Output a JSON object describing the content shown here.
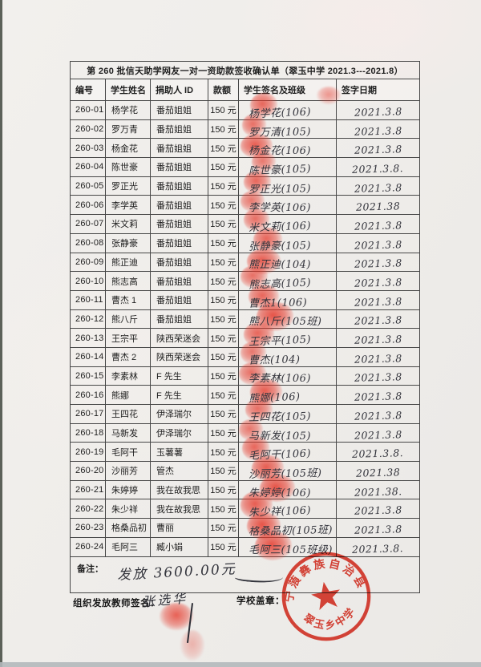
{
  "title": "第 260 批信天助学网友一对一资助款签收确认单（翠玉中学 2021.3---2021.8）",
  "columns": [
    "编号",
    "学生姓名",
    "捐助人 ID",
    "款额",
    "学生签名及班级",
    "签字日期"
  ],
  "rows": [
    {
      "id": "260-01",
      "name": "杨学花",
      "donor": "番茄姐姐",
      "amount": "150 元",
      "signature": "杨学花(106)",
      "date": "2021.3.8"
    },
    {
      "id": "260-02",
      "name": "罗万青",
      "donor": "番茄姐姐",
      "amount": "150 元",
      "signature": "罗万清(105)",
      "date": "2021.3.8"
    },
    {
      "id": "260-03",
      "name": "杨金花",
      "donor": "番茄姐姐",
      "amount": "150 元",
      "signature": "杨金花(106)",
      "date": "2021.3.8"
    },
    {
      "id": "260-04",
      "name": "陈世豪",
      "donor": "番茄姐姐",
      "amount": "150 元",
      "signature": "陈世豪(105)",
      "date": "2021.3.8."
    },
    {
      "id": "260-05",
      "name": "罗正光",
      "donor": "番茄姐姐",
      "amount": "150 元",
      "signature": "罗正光(105)",
      "date": "2021.3.8"
    },
    {
      "id": "260-06",
      "name": "李学英",
      "donor": "番茄姐姐",
      "amount": "150 元",
      "signature": "李学英(106)",
      "date": "2021.38"
    },
    {
      "id": "260-07",
      "name": "米文莉",
      "donor": "番茄姐姐",
      "amount": "150 元",
      "signature": "米文莉(106)",
      "date": "2021.3.8"
    },
    {
      "id": "260-08",
      "name": "张静豪",
      "donor": "番茄姐姐",
      "amount": "150 元",
      "signature": "张静豪(105)",
      "date": "2021.3.8"
    },
    {
      "id": "260-09",
      "name": "熊正迪",
      "donor": "番茄姐姐",
      "amount": "150 元",
      "signature": "熊正迪(104)",
      "date": "2021.3.8"
    },
    {
      "id": "260-10",
      "name": "熊志高",
      "donor": "番茄姐姐",
      "amount": "150 元",
      "signature": "熊志高(105)",
      "date": "2021.3.8"
    },
    {
      "id": "260-11",
      "name": "曹杰 1",
      "donor": "番茄姐姐",
      "amount": "150 元",
      "signature": "曹杰1(106)",
      "date": "2021.3.8"
    },
    {
      "id": "260-12",
      "name": "熊八斤",
      "donor": "番茄姐姐",
      "amount": "150 元",
      "signature": "熊八斤(105班)",
      "date": "2021.3.8"
    },
    {
      "id": "260-13",
      "name": "王宗平",
      "donor": "陕西荣迷会",
      "amount": "150 元",
      "signature": "王宗平(105)",
      "date": "2021.3.8"
    },
    {
      "id": "260-14",
      "name": "曹杰 2",
      "donor": "陕西荣迷会",
      "amount": "150 元",
      "signature": "曹杰(104)",
      "date": "2021.3.8"
    },
    {
      "id": "260-15",
      "name": "李素林",
      "donor": "F 先生",
      "amount": "150 元",
      "signature": "李素林(106)",
      "date": "2021.3.8"
    },
    {
      "id": "260-16",
      "name": "熊娜",
      "donor": "F 先生",
      "amount": "150 元",
      "signature": "熊娜(106)",
      "date": "2021.3.8"
    },
    {
      "id": "260-17",
      "name": "王四花",
      "donor": "伊泽瑞尔",
      "amount": "150 元",
      "signature": "王四花(105)",
      "date": "2021.3.8"
    },
    {
      "id": "260-18",
      "name": "马新发",
      "donor": "伊泽瑞尔",
      "amount": "150 元",
      "signature": "马新发(105)",
      "date": "2021.3.8"
    },
    {
      "id": "260-19",
      "name": "毛阿干",
      "donor": "玉薯薯",
      "amount": "150 元",
      "signature": "毛阿干(106)",
      "date": "2021.3.8."
    },
    {
      "id": "260-20",
      "name": "沙丽芳",
      "donor": "管杰",
      "amount": "150 元",
      "signature": "沙丽芳(105班)",
      "date": "2021.38"
    },
    {
      "id": "260-21",
      "name": "朱婷婷",
      "donor": "我在故我思",
      "amount": "150 元",
      "signature": "朱婷婷(106)",
      "date": "2021.38."
    },
    {
      "id": "260-22",
      "name": "朱少祥",
      "donor": "我在故我思",
      "amount": "150 元",
      "signature": "朱少祥(106)",
      "date": "2021.3.8"
    },
    {
      "id": "260-23",
      "name": "格桑品初",
      "donor": "曹丽",
      "amount": "150 元",
      "signature": "格桑品初(105班)",
      "date": "2021.3.8"
    },
    {
      "id": "260-24",
      "name": "毛阿三",
      "donor": "臧小娟",
      "amount": "150 元",
      "signature": "毛阿三(105班级)",
      "date": "2021.3.8."
    }
  ],
  "footer": {
    "note_label": "备注：",
    "note_value": "发放 3600.00元",
    "teacher_label": "组织发放教师签名：",
    "teacher_signature": "张选华",
    "stamp_label": "学校盖章：",
    "stamp_top_text": "宁蒗彝族自治县",
    "stamp_bottom_text": "翠玉乡中学"
  },
  "colors": {
    "stamp_red": "#e0372a",
    "fingerprint_red": "#e53426",
    "ink": "#33343c"
  }
}
